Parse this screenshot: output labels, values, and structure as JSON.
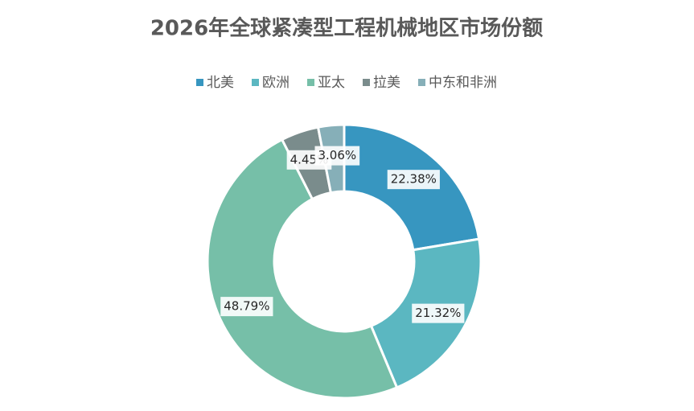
{
  "chart_data": {
    "type": "donut",
    "title": "2026年全球紧凑型工程机械地区市场份额",
    "categories": [
      "北美",
      "欧洲",
      "亚太",
      "拉美",
      "中东和非洲"
    ],
    "values": [
      22.38,
      21.32,
      48.79,
      4.45,
      3.06
    ],
    "value_labels": [
      "22.38%",
      "21.32%",
      "48.79%",
      "4.45%",
      "3.06%"
    ],
    "colors": [
      "#3796c0",
      "#5bb7c1",
      "#76bfa8",
      "#7a8c8c",
      "#86afb8"
    ],
    "legend": "top"
  }
}
